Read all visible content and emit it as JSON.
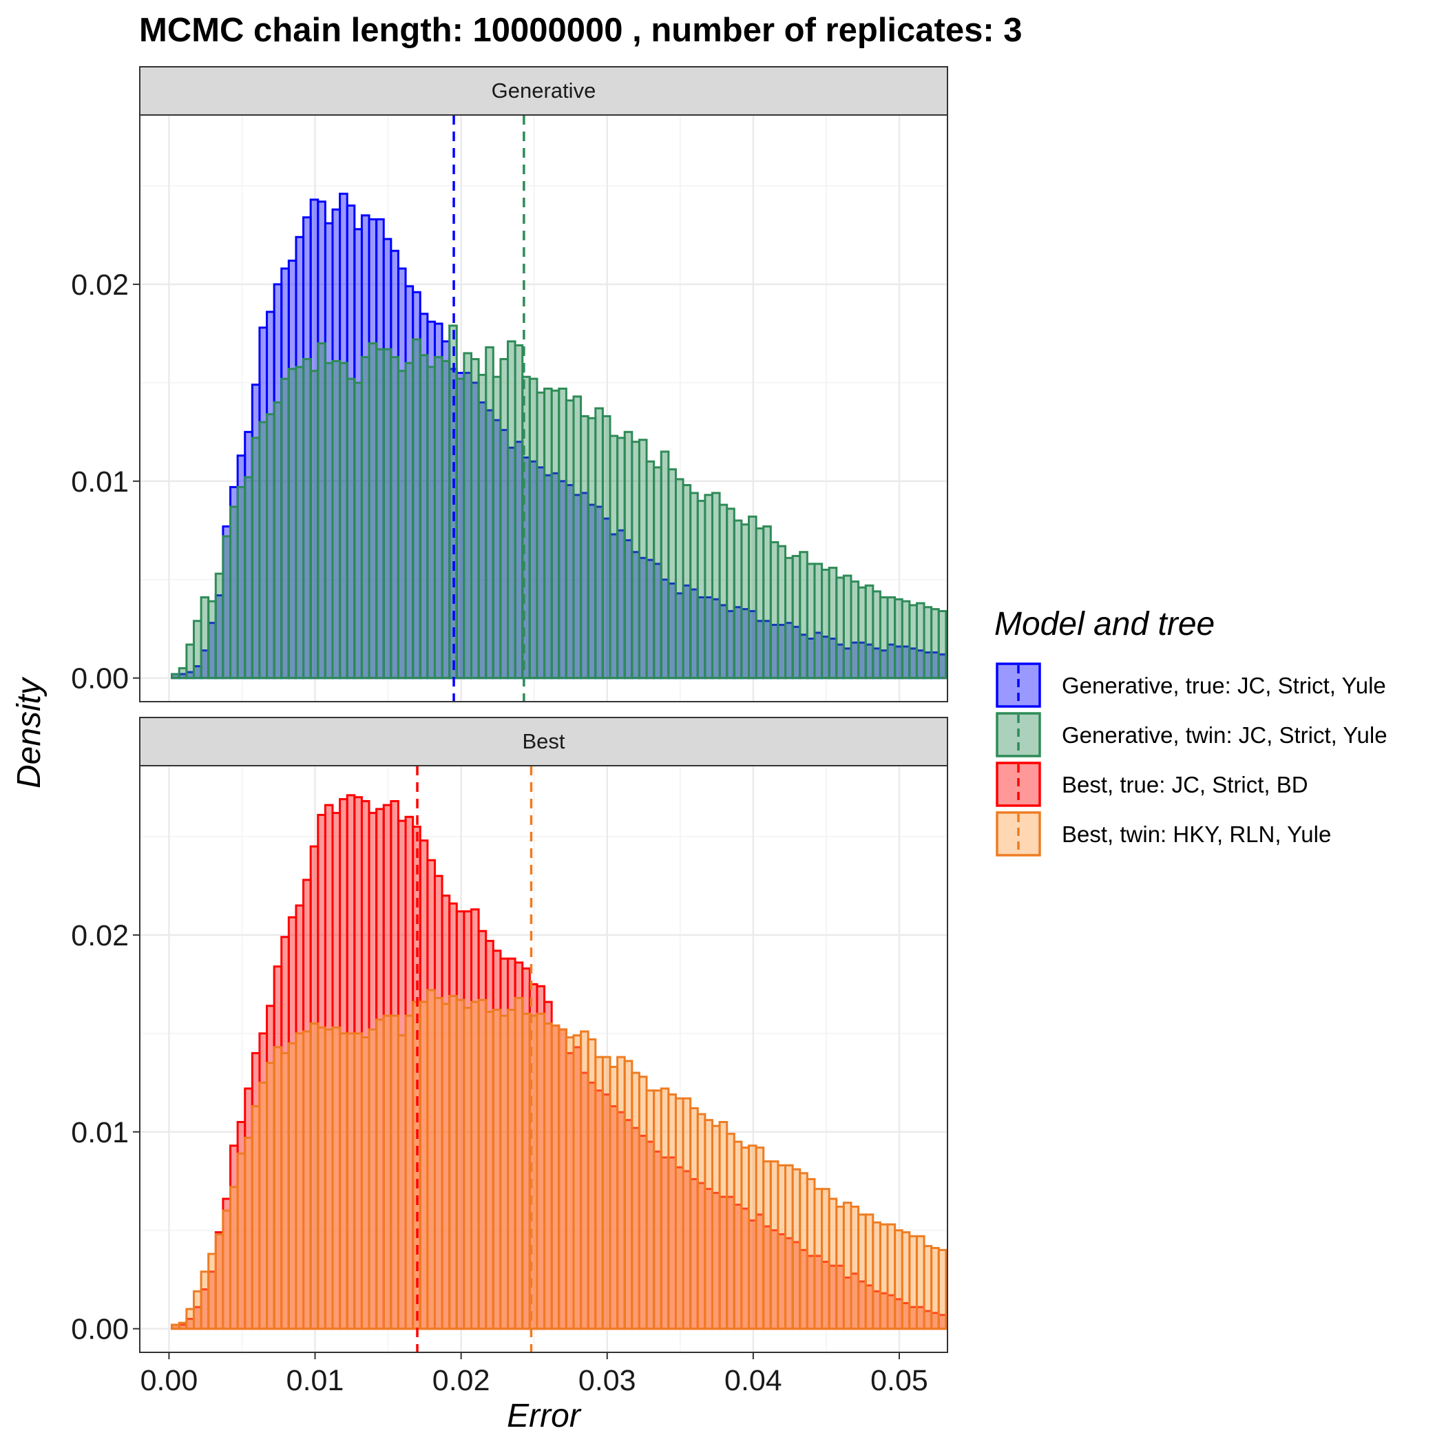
{
  "chart_data": {
    "type": "histogram",
    "title": "MCMC chain length: 10000000 , number of replicates:  3",
    "xlabel": "Error",
    "ylabel": "Density",
    "xlim": [
      -0.002,
      0.0533
    ],
    "ylim": [
      -0.0012,
      0.0286
    ],
    "x_ticks": [
      "0.00",
      "0.01",
      "0.02",
      "0.03",
      "0.04",
      "0.05"
    ],
    "x_tick_values": [
      0,
      0.01,
      0.02,
      0.03,
      0.04,
      0.05
    ],
    "y_ticks": [
      "0.00",
      "0.01",
      "0.02"
    ],
    "y_tick_values": [
      0,
      0.01,
      0.02
    ],
    "bin_start": 0.0002,
    "bin_width": 0.0005,
    "legend": {
      "title": "Model and tree",
      "position": "right",
      "entries": [
        {
          "label": "Generative, true: JC, Strict, Yule",
          "fill": "#0000ff",
          "line": "#0000ff"
        },
        {
          "label": "Generative, twin: JC, Strict, Yule",
          "fill": "#2e8b57",
          "line": "#2e8b57"
        },
        {
          "label": "Best, true: JC, Strict, BD",
          "fill": "#ff0000",
          "line": "#ff0000"
        },
        {
          "label": "Best, twin: HKY, RLN, Yule",
          "fill": "#ff9e42",
          "line": "#ee7c22"
        }
      ]
    },
    "panels": [
      {
        "strip": "Generative",
        "series": [
          {
            "name": "Generative, true: JC, Strict, Yule",
            "fill": "#0000ff",
            "line": "#0000ff",
            "fill_opacity": 0.4,
            "mean": 0.0195,
            "values": [
              0.0002,
              0.0002,
              0.0003,
              0.0006,
              0.0014,
              0.0028,
              0.0042,
              0.0077,
              0.0097,
              0.0113,
              0.0125,
              0.0149,
              0.0178,
              0.0186,
              0.02,
              0.0208,
              0.0212,
              0.0224,
              0.0234,
              0.0243,
              0.0242,
              0.0231,
              0.0238,
              0.0246,
              0.024,
              0.0228,
              0.0235,
              0.0233,
              0.0233,
              0.0223,
              0.0217,
              0.0208,
              0.0199,
              0.0196,
              0.0185,
              0.0181,
              0.018,
              0.0171,
              0.0157,
              0.0155,
              0.0155,
              0.015,
              0.014,
              0.0136,
              0.0131,
              0.0126,
              0.0117,
              0.012,
              0.0112,
              0.011,
              0.0107,
              0.0103,
              0.0104,
              0.01,
              0.0098,
              0.0093,
              0.0094,
              0.0088,
              0.0087,
              0.0081,
              0.0073,
              0.0075,
              0.007,
              0.0064,
              0.0061,
              0.006,
              0.0058,
              0.005,
              0.0048,
              0.0043,
              0.0047,
              0.0045,
              0.0041,
              0.0041,
              0.004,
              0.0037,
              0.0034,
              0.0036,
              0.0035,
              0.0034,
              0.0029,
              0.0029,
              0.0027,
              0.0027,
              0.0028,
              0.0026,
              0.0022,
              0.002,
              0.0023,
              0.0021,
              0.002,
              0.0017,
              0.0015,
              0.0018,
              0.0018,
              0.0017,
              0.0015,
              0.0014,
              0.0017,
              0.0016,
              0.0016,
              0.0015,
              0.0014,
              0.0013,
              0.0013,
              0.0012
            ]
          },
          {
            "name": "Generative, twin: JC, Strict, Yule",
            "fill": "#2e8b57",
            "line": "#2e8b57",
            "fill_opacity": 0.4,
            "mean": 0.0243,
            "values": [
              0.0002,
              0.0005,
              0.0017,
              0.0029,
              0.0041,
              0.0039,
              0.0053,
              0.0072,
              0.0087,
              0.0097,
              0.0102,
              0.0122,
              0.013,
              0.0134,
              0.014,
              0.0152,
              0.0157,
              0.0158,
              0.0162,
              0.0156,
              0.017,
              0.016,
              0.0161,
              0.016,
              0.0152,
              0.015,
              0.0163,
              0.017,
              0.0167,
              0.0167,
              0.0163,
              0.0156,
              0.016,
              0.0172,
              0.0164,
              0.0158,
              0.0163,
              0.0161,
              0.0179,
              0.0152,
              0.0165,
              0.0162,
              0.0154,
              0.0168,
              0.0153,
              0.0162,
              0.0171,
              0.0169,
              0.0153,
              0.0152,
              0.0145,
              0.0147,
              0.0146,
              0.0147,
              0.0141,
              0.0143,
              0.0133,
              0.0132,
              0.0137,
              0.0133,
              0.0123,
              0.0122,
              0.0125,
              0.012,
              0.0121,
              0.011,
              0.0107,
              0.0115,
              0.0106,
              0.0101,
              0.0098,
              0.0094,
              0.009,
              0.0093,
              0.0094,
              0.0088,
              0.0086,
              0.008,
              0.0078,
              0.0082,
              0.0076,
              0.0077,
              0.0069,
              0.0067,
              0.0061,
              0.0062,
              0.0064,
              0.0058,
              0.0058,
              0.0055,
              0.0056,
              0.0051,
              0.0052,
              0.0049,
              0.0046,
              0.0047,
              0.0044,
              0.0041,
              0.0041,
              0.004,
              0.0039,
              0.0037,
              0.0038,
              0.0036,
              0.0035,
              0.0034
            ]
          }
        ]
      },
      {
        "strip": "Best",
        "series": [
          {
            "name": "Best, true: JC, Strict, BD",
            "fill": "#ff0000",
            "line": "#ff0000",
            "fill_opacity": 0.4,
            "mean": 0.017,
            "values": [
              0.0002,
              0.0002,
              0.0005,
              0.0011,
              0.002,
              0.0029,
              0.0049,
              0.0066,
              0.0093,
              0.0105,
              0.0122,
              0.014,
              0.015,
              0.0164,
              0.0184,
              0.0199,
              0.0209,
              0.0215,
              0.0228,
              0.0245,
              0.0261,
              0.0266,
              0.0262,
              0.0269,
              0.0271,
              0.027,
              0.0268,
              0.0262,
              0.0264,
              0.0266,
              0.0268,
              0.0258,
              0.026,
              0.0255,
              0.0248,
              0.0238,
              0.023,
              0.022,
              0.0216,
              0.0212,
              0.0212,
              0.0213,
              0.0202,
              0.0197,
              0.0192,
              0.0188,
              0.0188,
              0.0186,
              0.0183,
              0.0175,
              0.0174,
              0.0166,
              0.0154,
              0.0152,
              0.014,
              0.0143,
              0.013,
              0.0125,
              0.0121,
              0.0119,
              0.0113,
              0.011,
              0.0106,
              0.0102,
              0.0098,
              0.0095,
              0.009,
              0.0087,
              0.0087,
              0.0082,
              0.008,
              0.0076,
              0.0074,
              0.0071,
              0.0069,
              0.0067,
              0.0067,
              0.0063,
              0.0061,
              0.0055,
              0.0058,
              0.0052,
              0.005,
              0.0048,
              0.0046,
              0.0044,
              0.004,
              0.0037,
              0.0037,
              0.0034,
              0.0032,
              0.0032,
              0.0026,
              0.0028,
              0.0024,
              0.0022,
              0.0019,
              0.0018,
              0.0017,
              0.0015,
              0.0013,
              0.0011,
              0.0011,
              0.0009,
              0.0008,
              0.0007
            ]
          },
          {
            "name": "Best, twin: HKY, RLN, Yule",
            "fill": "#ff9e42",
            "line": "#ee7c22",
            "fill_opacity": 0.45,
            "mean": 0.0248,
            "values": [
              0.0002,
              0.0003,
              0.001,
              0.0019,
              0.0029,
              0.0038,
              0.0048,
              0.006,
              0.0072,
              0.0089,
              0.0097,
              0.0113,
              0.0125,
              0.0135,
              0.0143,
              0.014,
              0.0145,
              0.015,
              0.0151,
              0.0155,
              0.0153,
              0.0152,
              0.0153,
              0.015,
              0.015,
              0.015,
              0.0148,
              0.0152,
              0.0157,
              0.0159,
              0.0159,
              0.0149,
              0.0159,
              0.0166,
              0.0166,
              0.0172,
              0.0168,
              0.0165,
              0.0169,
              0.0167,
              0.0163,
              0.0166,
              0.0167,
              0.0161,
              0.0162,
              0.0159,
              0.0162,
              0.0168,
              0.016,
              0.0159,
              0.016,
              0.0155,
              0.0154,
              0.0152,
              0.0148,
              0.0149,
              0.0151,
              0.0147,
              0.0138,
              0.0138,
              0.0133,
              0.0138,
              0.0136,
              0.013,
              0.0128,
              0.0121,
              0.0121,
              0.0122,
              0.0119,
              0.0117,
              0.0117,
              0.0112,
              0.0109,
              0.0106,
              0.0103,
              0.0105,
              0.0099,
              0.0095,
              0.0092,
              0.0093,
              0.0092,
              0.0085,
              0.0085,
              0.0083,
              0.0083,
              0.0081,
              0.0079,
              0.0076,
              0.0071,
              0.0071,
              0.0066,
              0.0062,
              0.0064,
              0.0062,
              0.0058,
              0.0058,
              0.0054,
              0.0053,
              0.0053,
              0.005,
              0.0049,
              0.0047,
              0.0047,
              0.0042,
              0.0041,
              0.004
            ]
          }
        ]
      }
    ]
  }
}
